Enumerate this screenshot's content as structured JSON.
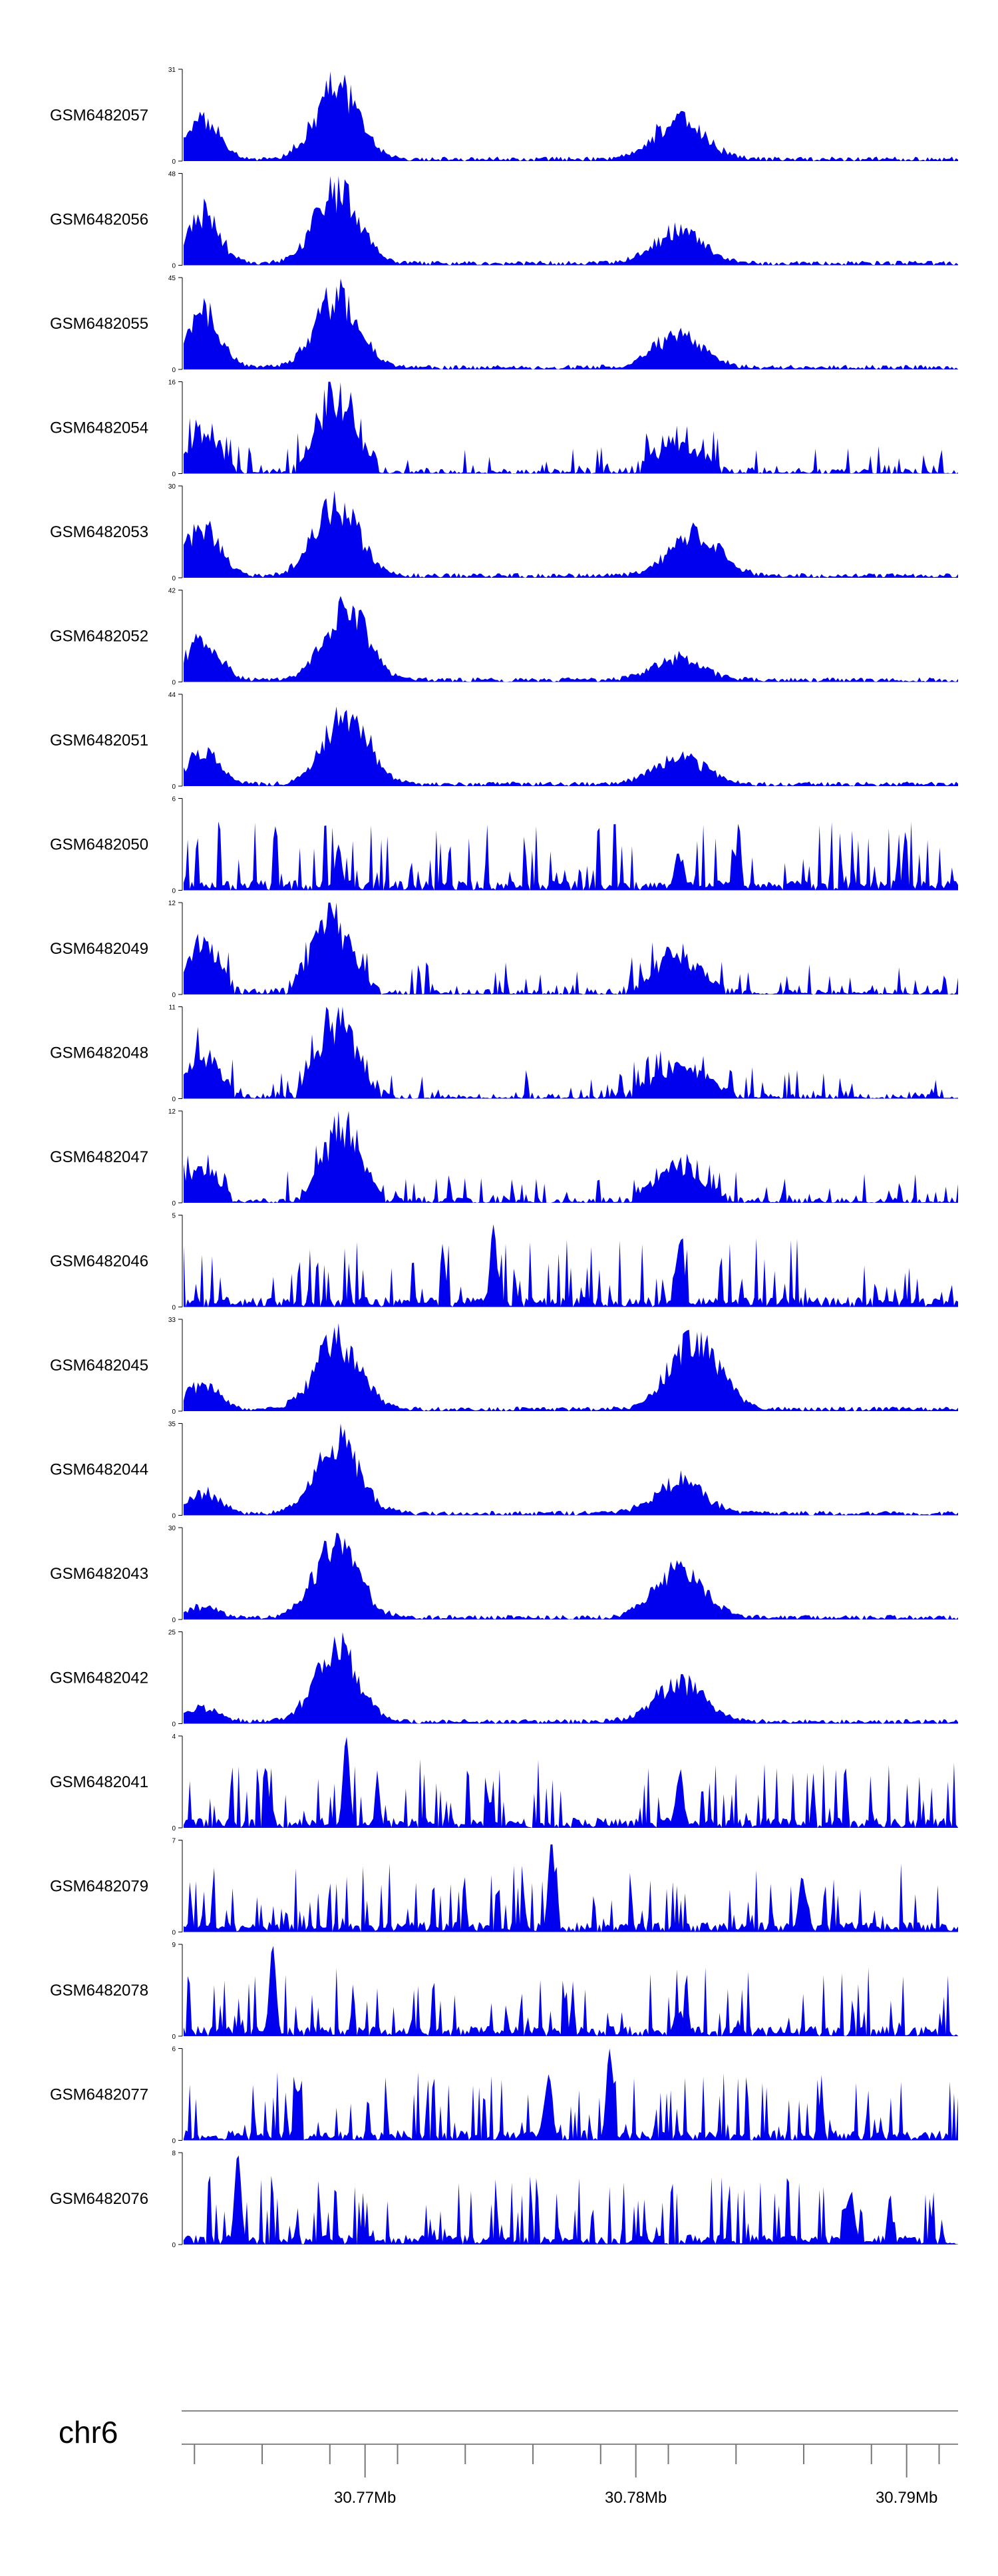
{
  "chart_data": {
    "type": "area",
    "title": "",
    "chromosome": "chr6",
    "x_range_mb": [
      30.7633,
      30.7919
    ],
    "major_ticks": [
      {
        "position_mb": 30.77,
        "label": "30.77Mb"
      },
      {
        "position_mb": 30.78,
        "label": "30.78Mb"
      },
      {
        "position_mb": 30.79,
        "label": "30.79Mb"
      }
    ],
    "minor_ticks_mb": [
      30.7637,
      30.7662,
      30.7687,
      30.7712,
      30.7737,
      30.7762,
      30.7787,
      30.7812,
      30.7837,
      30.7862,
      30.7887,
      30.7912
    ],
    "fill_color": "#0000ee",
    "tracks": [
      {
        "name": "GSM6482057",
        "ymax": 31,
        "style": "chip",
        "p1": 0.198,
        "p1_height": 1.0,
        "p2": 0.64,
        "p2_height": 0.55,
        "start_level": 0.55
      },
      {
        "name": "GSM6482056",
        "ymax": 48,
        "style": "chip",
        "p1": 0.198,
        "p1_height": 1.0,
        "p2": 0.64,
        "p2_height": 0.45,
        "start_level": 0.7
      },
      {
        "name": "GSM6482055",
        "ymax": 45,
        "style": "chip",
        "p1": 0.198,
        "p1_height": 1.0,
        "p2": 0.64,
        "p2_height": 0.45,
        "start_level": 0.75
      },
      {
        "name": "GSM6482054",
        "ymax": 16,
        "style": "sparse",
        "p1": 0.198,
        "p1_height": 1.0,
        "p2": 0.64,
        "p2_height": 0.35,
        "start_level": 0.45
      },
      {
        "name": "GSM6482053",
        "ymax": 30,
        "style": "chip",
        "p1": 0.198,
        "p1_height": 1.0,
        "p2": 0.66,
        "p2_height": 0.6,
        "start_level": 0.7
      },
      {
        "name": "GSM6482052",
        "ymax": 42,
        "style": "chip",
        "p1": 0.21,
        "p1_height": 1.0,
        "p2": 0.64,
        "p2_height": 0.3,
        "start_level": 0.55
      },
      {
        "name": "GSM6482051",
        "ymax": 44,
        "style": "chip",
        "p1": 0.21,
        "p1_height": 1.0,
        "p2": 0.64,
        "p2_height": 0.4,
        "start_level": 0.45
      },
      {
        "name": "GSM6482050",
        "ymax": 6,
        "style": "noise",
        "p1": 0.2,
        "p1_height": 0.5,
        "p2": 0.64,
        "p2_height": 0.5,
        "start_level": 0.6
      },
      {
        "name": "GSM6482049",
        "ymax": 12,
        "style": "sparse",
        "p1": 0.19,
        "p1_height": 1.0,
        "p2": 0.64,
        "p2_height": 0.45,
        "start_level": 0.6
      },
      {
        "name": "GSM6482048",
        "ymax": 11,
        "style": "sparse",
        "p1": 0.198,
        "p1_height": 1.0,
        "p2": 0.64,
        "p2_height": 0.45,
        "start_level": 0.55
      },
      {
        "name": "GSM6482047",
        "ymax": 12,
        "style": "sparse",
        "p1": 0.205,
        "p1_height": 1.0,
        "p2": 0.64,
        "p2_height": 0.45,
        "start_level": 0.45
      },
      {
        "name": "GSM6482046",
        "ymax": 5,
        "style": "noise",
        "p1": 0.4,
        "p1_height": 0.9,
        "p2": 0.64,
        "p2_height": 0.8,
        "start_level": 0.7
      },
      {
        "name": "GSM6482045",
        "ymax": 33,
        "style": "chip",
        "p1": 0.198,
        "p1_height": 1.0,
        "p2": 0.66,
        "p2_height": 0.95,
        "start_level": 0.35
      },
      {
        "name": "GSM6482044",
        "ymax": 35,
        "style": "chip",
        "p1": 0.198,
        "p1_height": 1.0,
        "p2": 0.64,
        "p2_height": 0.45,
        "start_level": 0.3
      },
      {
        "name": "GSM6482043",
        "ymax": 30,
        "style": "chip",
        "p1": 0.198,
        "p1_height": 1.0,
        "p2": 0.64,
        "p2_height": 0.65,
        "start_level": 0.15
      },
      {
        "name": "GSM6482042",
        "ymax": 25,
        "style": "chip",
        "p1": 0.198,
        "p1_height": 1.0,
        "p2": 0.64,
        "p2_height": 0.55,
        "start_level": 0.2
      },
      {
        "name": "GSM6482041",
        "ymax": 4,
        "style": "noise",
        "p1": 0.21,
        "p1_height": 1.0,
        "p2": 0.64,
        "p2_height": 0.7,
        "start_level": 0.6
      },
      {
        "name": "GSM6482079",
        "ymax": 7,
        "style": "noise",
        "p1": 0.475,
        "p1_height": 1.0,
        "p2": 0.8,
        "p2_height": 0.75,
        "start_level": 0.35
      },
      {
        "name": "GSM6482078",
        "ymax": 9,
        "style": "noise",
        "p1": 0.115,
        "p1_height": 1.0,
        "p2": 0.64,
        "p2_height": 0.4,
        "start_level": 0.3
      },
      {
        "name": "GSM6482077",
        "ymax": 6,
        "style": "noise",
        "p1": 0.55,
        "p1_height": 1.0,
        "p2": 0.47,
        "p2_height": 0.8,
        "start_level": 0.5
      },
      {
        "name": "GSM6482076",
        "ymax": 8,
        "style": "noise",
        "p1": 0.07,
        "p1_height": 1.0,
        "p2": 0.86,
        "p2_height": 0.8,
        "start_level": 0.5
      }
    ]
  }
}
